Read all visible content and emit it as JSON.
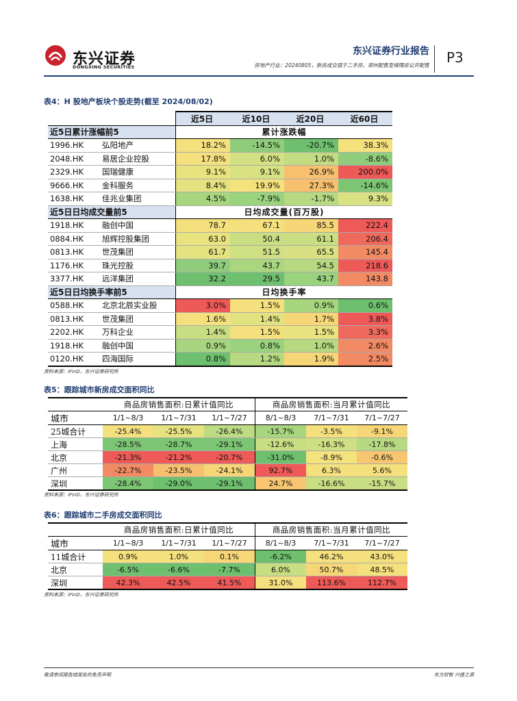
{
  "header": {
    "logo_cn": "东兴证券",
    "logo_en": "DONGXING SECURITIES",
    "report_type": "东兴证券行业报告",
    "subtitle": "房地产行业：20240805，新房成交弱于二手房，郑州配售型保障房公开配售",
    "page": "P3",
    "colors": {
      "brand_red": "#c8222c",
      "brand_blue": "#1f3c70"
    }
  },
  "table4": {
    "caption": "表4：H 股地产板块个股走势(截至 2024/08/02)",
    "columns": [
      "近5日",
      "近10日",
      "近20日",
      "近60日"
    ],
    "sections": [
      {
        "label": "近5日累计涨幅前5",
        "title": "累计涨跌幅",
        "rows": [
          {
            "code": "1996.HK",
            "name": "弘阳地产",
            "values": [
              "18.2%",
              "-14.5%",
              "-20.7%",
              "38.3%"
            ],
            "colors": [
              "#f5e07e",
              "#8fcd7c",
              "#6ec06e",
              "#f5e07e"
            ]
          },
          {
            "code": "2048.HK",
            "name": "易居企业控股",
            "values": [
              "17.8%",
              "6.0%",
              "1.0%",
              "-8.6%"
            ],
            "colors": [
              "#f5e07e",
              "#d3e184",
              "#c3dc82",
              "#8fcd7c"
            ]
          },
          {
            "code": "2329.HK",
            "name": "国瑞健康",
            "values": [
              "9.1%",
              "9.1%",
              "26.9%",
              "200.0%"
            ],
            "colors": [
              "#e9e37f",
              "#d9e283",
              "#f6c06f",
              "#ee5a57"
            ]
          },
          {
            "code": "9666.HK",
            "name": "金科服务",
            "values": [
              "8.4%",
              "19.9%",
              "27.3%",
              "-14.6%"
            ],
            "colors": [
              "#e5e280",
              "#f4e27c",
              "#f6c06f",
              "#7cc673"
            ]
          },
          {
            "code": "1638.HK",
            "name": "佳兆业集团",
            "values": [
              "4.5%",
              "-7.9%",
              "-1.7%",
              "9.3%"
            ],
            "colors": [
              "#a8d67f",
              "#9ad27e",
              "#b6d981",
              "#d9e283"
            ]
          }
        ]
      },
      {
        "label": "近5日日均成交量前5",
        "title": "日均成交量(百万股)",
        "rows": [
          {
            "code": "1918.HK",
            "name": "融创中国",
            "values": [
              "78.7",
              "67.1",
              "85.5",
              "222.4"
            ],
            "colors": [
              "#f5e07e",
              "#f5e07e",
              "#f6d676",
              "#ee5a57"
            ]
          },
          {
            "code": "0884.HK",
            "name": "旭辉控股集团",
            "values": [
              "63.0",
              "50.4",
              "61.1",
              "206.4"
            ],
            "colors": [
              "#e8e27f",
              "#c9de83",
              "#c9de83",
              "#ef6a5c"
            ]
          },
          {
            "code": "0813.HK",
            "name": "世茂集团",
            "values": [
              "61.7",
              "51.5",
              "65.5",
              "145.4"
            ],
            "colors": [
              "#e5e280",
              "#cfdf83",
              "#d7e183",
              "#f28a63"
            ]
          },
          {
            "code": "1176.HK",
            "name": "珠光控股",
            "values": [
              "39.7",
              "43.7",
              "54.5",
              "218.6"
            ],
            "colors": [
              "#8fcd7c",
              "#aad67f",
              "#b7d981",
              "#ee5a57"
            ]
          },
          {
            "code": "3377.HK",
            "name": "远洋集团",
            "values": [
              "32.2",
              "29.5",
              "43.7",
              "143.8"
            ],
            "colors": [
              "#6ec06e",
              "#6ec06e",
              "#9bd27e",
              "#f28a63"
            ]
          }
        ]
      },
      {
        "label": "近5日日均换手率前5",
        "title": "日均换手率",
        "rows": [
          {
            "code": "0588.HK",
            "name": "北京北辰实业股",
            "values": [
              "3.0%",
              "1.5%",
              "0.9%",
              "0.6%"
            ],
            "colors": [
              "#ee5a57",
              "#f5e07e",
              "#a8d67f",
              "#6ec06e"
            ]
          },
          {
            "code": "0813.HK",
            "name": "世茂集团",
            "values": [
              "1.6%",
              "1.4%",
              "1.7%",
              "3.8%"
            ],
            "colors": [
              "#f5e07e",
              "#e2e280",
              "#f6d676",
              "#ee5a57"
            ]
          },
          {
            "code": "2202.HK",
            "name": "万科企业",
            "values": [
              "1.4%",
              "1.5%",
              "1.5%",
              "3.3%"
            ],
            "colors": [
              "#c9de83",
              "#f5e07e",
              "#e8e27f",
              "#ef6a5c"
            ]
          },
          {
            "code": "1918.HK",
            "name": "融创中国",
            "values": [
              "0.9%",
              "0.8%",
              "1.0%",
              "2.6%"
            ],
            "colors": [
              "#a8d67f",
              "#9ad27e",
              "#b7d981",
              "#f28a63"
            ]
          },
          {
            "code": "0120.HK",
            "name": "四海国际",
            "values": [
              "0.8%",
              "1.2%",
              "1.9%",
              "2.5%"
            ],
            "colors": [
              "#6ec06e",
              "#b7d981",
              "#f6d676",
              "#f28a63"
            ]
          }
        ]
      }
    ],
    "source": "资料来源：iFinD，东兴证券研究所"
  },
  "table5": {
    "caption": "表5：跟踪城市新房成交面积同比",
    "group_left": "商品房销售面积:日累计值同比",
    "group_right": "商品房销售面积:当月累计值同比",
    "city_header": "城市",
    "periods": [
      "1/1~8/3",
      "1/1~7/31",
      "1/1~7/27",
      "8/1~8/3",
      "7/1~7/31",
      "7/1~7/27"
    ],
    "rows": [
      {
        "city": "25城合计",
        "values": [
          "-25.4%",
          "-25.5%",
          "-26.4%",
          "-15.7%",
          "-3.5%",
          "-9.1%"
        ],
        "colors": [
          "#f5e07e",
          "#e6e280",
          "#bcdb82",
          "#a8d67f",
          "#f5e07e",
          "#f6d676"
        ]
      },
      {
        "city": "上海",
        "values": [
          "-28.5%",
          "-28.7%",
          "-29.1%",
          "-12.6%",
          "-16.3%",
          "-17.8%"
        ],
        "colors": [
          "#7cc673",
          "#7cc673",
          "#7cc673",
          "#c9de83",
          "#cfdf83",
          "#b7d981"
        ]
      },
      {
        "city": "北京",
        "values": [
          "-21.3%",
          "-21.2%",
          "-20.7%",
          "-31.0%",
          "-8.9%",
          "-0.6%"
        ],
        "colors": [
          "#ee5a57",
          "#ee5a57",
          "#ee5a57",
          "#6ec06e",
          "#f4e27c",
          "#f8c671"
        ]
      },
      {
        "city": "广州",
        "values": [
          "-22.7%",
          "-23.5%",
          "-24.1%",
          "92.7%",
          "6.3%",
          "5.6%"
        ],
        "colors": [
          "#f28a63",
          "#f6c06f",
          "#f6d676",
          "#ee5a57",
          "#f5e07e",
          "#f5e07e"
        ]
      },
      {
        "city": "深圳",
        "values": [
          "-28.4%",
          "-29.0%",
          "-29.1%",
          "24.7%",
          "-16.6%",
          "-15.7%"
        ],
        "colors": [
          "#7cc673",
          "#6ec06e",
          "#6ec06e",
          "#f8c671",
          "#c9de83",
          "#c9de83"
        ]
      }
    ],
    "source": "资料来源：iFinD，东兴证券研究所"
  },
  "table6": {
    "caption": "表6：跟踪城市二手房成交面积同比",
    "group_left": "商品房销售面积:日累计值同比",
    "group_right": "商品房销售面积:当月累计值同比",
    "city_header": "城市",
    "periods": [
      "1/1~8/3",
      "1/1~7/31",
      "1/1~7/27",
      "8/1~8/3",
      "7/1~7/31",
      "7/1~7/27"
    ],
    "rows": [
      {
        "city": "11城合计",
        "values": [
          "0.9%",
          "1.0%",
          "0.1%",
          "-6.2%",
          "46.2%",
          "43.0%"
        ],
        "colors": [
          "#f5e07e",
          "#f5e07e",
          "#f6d676",
          "#6ec06e",
          "#f5e07e",
          "#f5e07e"
        ]
      },
      {
        "city": "北京",
        "values": [
          "-6.5%",
          "-6.6%",
          "-7.7%",
          "6.0%",
          "50.7%",
          "48.5%"
        ],
        "colors": [
          "#6ec06e",
          "#6ec06e",
          "#6ec06e",
          "#c9de83",
          "#f6d676",
          "#f5e07e"
        ]
      },
      {
        "city": "深圳",
        "values": [
          "42.3%",
          "42.5%",
          "41.5%",
          "31.0%",
          "113.6%",
          "112.7%"
        ],
        "colors": [
          "#ee5a57",
          "#ee5a57",
          "#ee5a57",
          "#f5e07e",
          "#ee5a57",
          "#ee5a57"
        ]
      }
    ],
    "source": "资料来源：iFinD，东兴证券研究所"
  },
  "footer": {
    "disclaimer": "敬请参阅报告结尾处的免责声明",
    "slogan": "东方财智  兴盛之源"
  }
}
